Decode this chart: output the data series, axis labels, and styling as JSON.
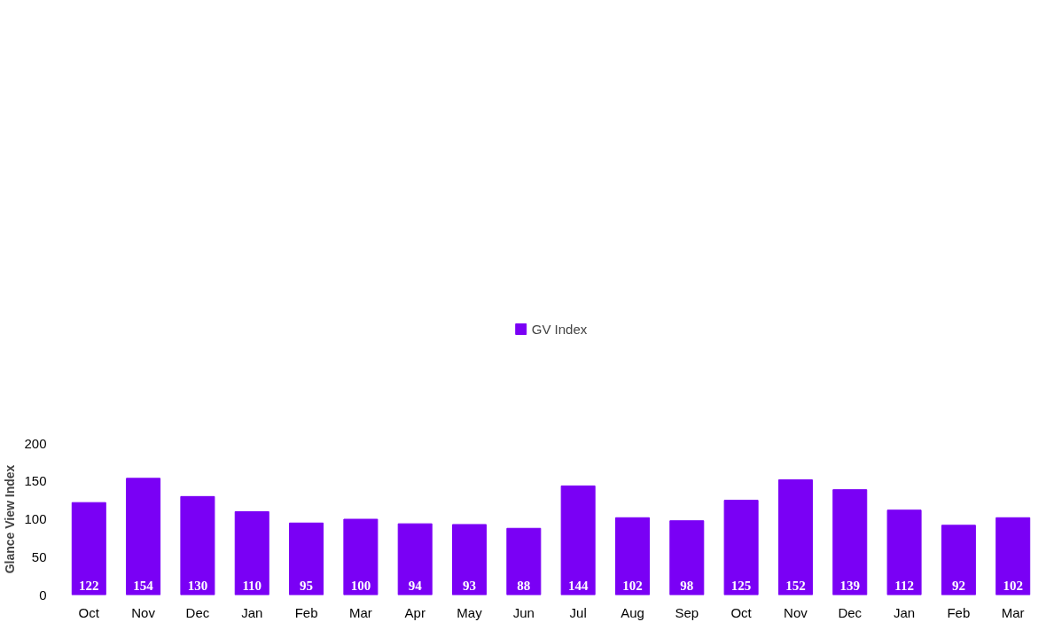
{
  "chart_data": {
    "type": "bar",
    "ylabel": "Glance View Index",
    "categories": [
      "Oct",
      "Nov",
      "Dec",
      "Jan",
      "Feb",
      "Mar",
      "Apr",
      "May",
      "Jun",
      "Jul",
      "Aug",
      "Sep",
      "Oct",
      "Nov",
      "Dec",
      "Jan",
      "Feb",
      "Mar"
    ],
    "series": [
      {
        "name": "GV Index",
        "color": "#7a00f5",
        "values": [
          122,
          154,
          130,
          110,
          95,
          100,
          94,
          93,
          88,
          144,
          102,
          98,
          125,
          152,
          139,
          112,
          92,
          102
        ]
      }
    ],
    "ylim": [
      0,
      200
    ],
    "yticks": [
      0,
      50,
      100,
      150,
      200
    ],
    "grid": false,
    "legend": "top",
    "data_labels": true
  }
}
